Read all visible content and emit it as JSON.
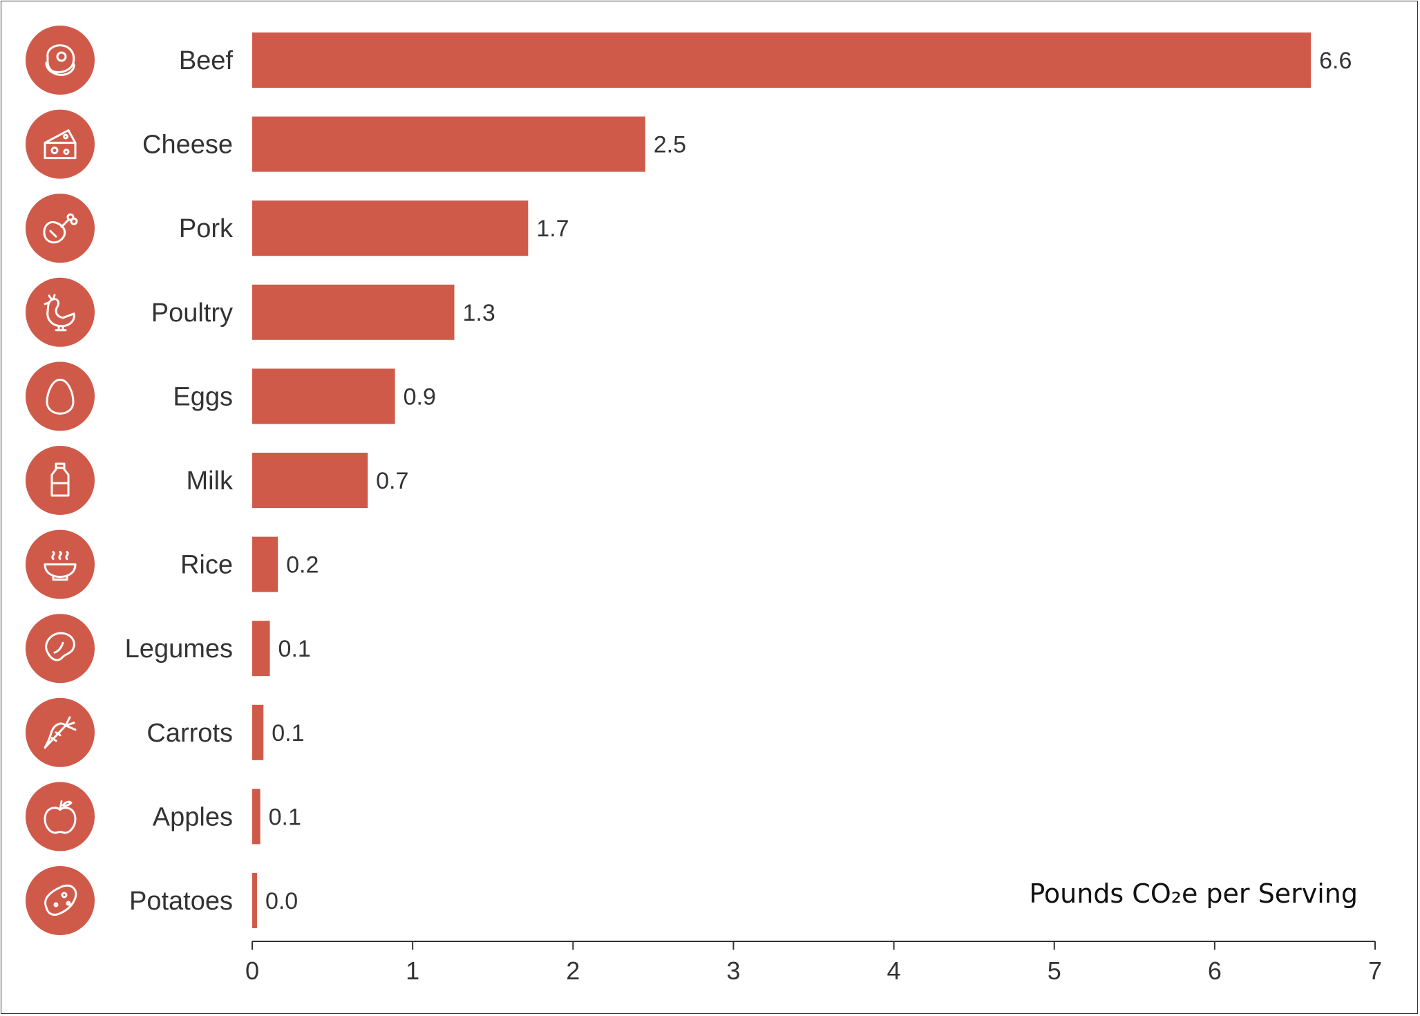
{
  "chart_data": {
    "type": "bar",
    "orientation": "horizontal",
    "categories": [
      "Beef",
      "Cheese",
      "Pork",
      "Poultry",
      "Eggs",
      "Milk",
      "Rice",
      "Legumes",
      "Carrots",
      "Apples",
      "Potatoes"
    ],
    "values": [
      6.6,
      2.45,
      1.72,
      1.26,
      0.89,
      0.72,
      0.16,
      0.11,
      0.07,
      0.05,
      0.03
    ],
    "value_labels": [
      "6.6",
      "2.5",
      "1.7",
      "1.3",
      "0.9",
      "0.7",
      "0.2",
      "0.1",
      "0.1",
      "0.1",
      "0.0"
    ],
    "icons": [
      "steak-icon",
      "cheese-icon",
      "ham-leg-icon",
      "chicken-icon",
      "egg-icon",
      "milk-bottle-icon",
      "rice-bowl-icon",
      "bean-icon",
      "carrot-icon",
      "apple-icon",
      "potato-icon"
    ],
    "xlabel": "Pounds CO₂e per Serving",
    "xlim": [
      0,
      7
    ],
    "xticks": [
      "0",
      "1",
      "2",
      "3",
      "4",
      "5",
      "6",
      "7"
    ],
    "grid": false,
    "colors": {
      "bar": "#d05a4a",
      "icon_circle": "#d05a4a",
      "text": "#333333"
    }
  }
}
